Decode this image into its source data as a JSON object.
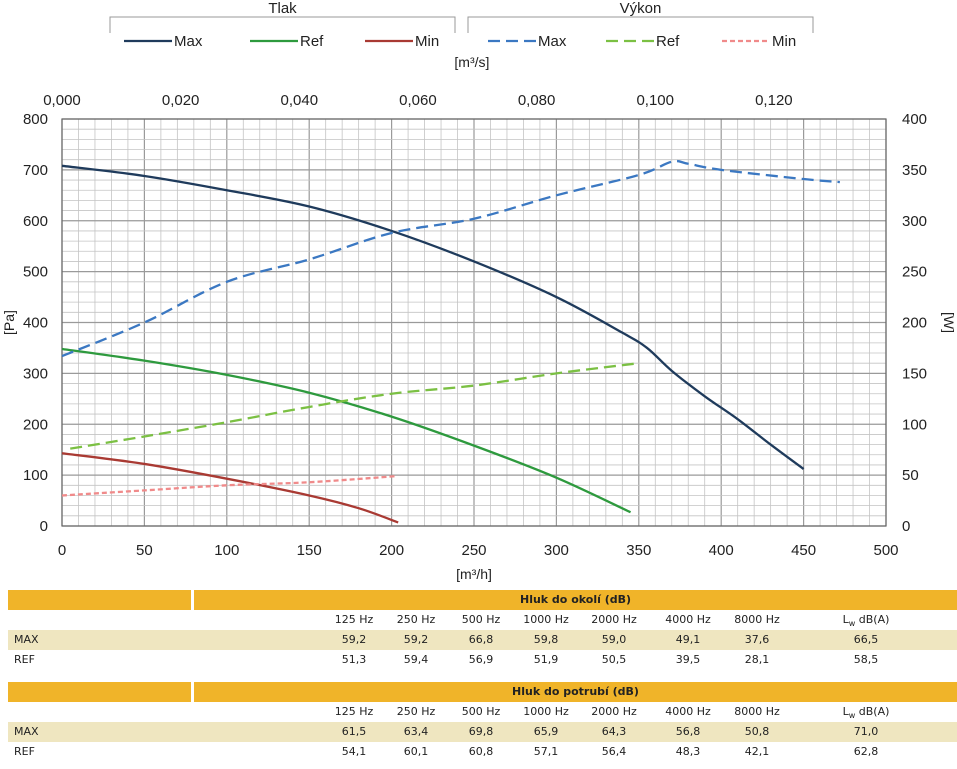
{
  "chart_data": {
    "type": "line",
    "legend": {
      "groups": [
        {
          "title": "Tlak",
          "items": [
            "Max",
            "Ref",
            "Min"
          ]
        },
        {
          "title": "Výkon",
          "items": [
            "Max",
            "Ref",
            "Min"
          ]
        }
      ],
      "placement": "top"
    },
    "top_axis": {
      "label": "[m³/s]",
      "ticks": [
        "0,000",
        "0,020",
        "0,040",
        "0,060",
        "0,080",
        "0,100",
        "0,120"
      ],
      "range": [
        0,
        0.1389
      ]
    },
    "x_axis": {
      "label": "[m³/h]",
      "ticks": [
        "0",
        "50",
        "100",
        "150",
        "200",
        "250",
        "300",
        "350",
        "400",
        "450",
        "500"
      ],
      "range": [
        0,
        500
      ]
    },
    "y_left": {
      "label": "[Pa]",
      "ticks": [
        "0",
        "100",
        "200",
        "300",
        "400",
        "500",
        "600",
        "700",
        "800"
      ],
      "range": [
        0,
        800
      ]
    },
    "y_right": {
      "label": "[W]",
      "ticks": [
        "0",
        "50",
        "100",
        "150",
        "200",
        "250",
        "300",
        "350",
        "400"
      ],
      "range": [
        0,
        400
      ]
    },
    "grid": true,
    "series": [
      {
        "name": "Max",
        "group": "Tlak",
        "axis": "left",
        "color": "#1f3b5c",
        "dash": "solid",
        "points": [
          [
            0,
            708
          ],
          [
            50,
            688
          ],
          [
            100,
            660
          ],
          [
            150,
            628
          ],
          [
            200,
            580
          ],
          [
            250,
            520
          ],
          [
            300,
            450
          ],
          [
            340,
            380
          ],
          [
            355,
            350
          ],
          [
            370,
            305
          ],
          [
            390,
            255
          ],
          [
            410,
            210
          ],
          [
            430,
            160
          ],
          [
            450,
            112
          ]
        ]
      },
      {
        "name": "Ref",
        "group": "Tlak",
        "axis": "left",
        "color": "#2e9a3e",
        "dash": "solid",
        "points": [
          [
            0,
            348
          ],
          [
            50,
            325
          ],
          [
            100,
            297
          ],
          [
            150,
            262
          ],
          [
            200,
            215
          ],
          [
            250,
            158
          ],
          [
            300,
            95
          ],
          [
            345,
            27
          ]
        ]
      },
      {
        "name": "Min",
        "group": "Tlak",
        "axis": "left",
        "color": "#a93a33",
        "dash": "solid",
        "points": [
          [
            0,
            143
          ],
          [
            50,
            122
          ],
          [
            100,
            93
          ],
          [
            150,
            60
          ],
          [
            180,
            35
          ],
          [
            204,
            7
          ]
        ]
      },
      {
        "name": "Max",
        "group": "Výkon",
        "axis": "right",
        "color": "#3b78c2",
        "dash": "dashed",
        "points": [
          [
            0,
            167
          ],
          [
            50,
            200
          ],
          [
            100,
            240
          ],
          [
            150,
            262
          ],
          [
            200,
            288
          ],
          [
            250,
            302
          ],
          [
            300,
            325
          ],
          [
            350,
            345
          ],
          [
            370,
            358
          ],
          [
            380,
            356
          ],
          [
            400,
            350
          ],
          [
            450,
            341
          ],
          [
            472,
            338
          ]
        ]
      },
      {
        "name": "Ref",
        "group": "Výkon",
        "axis": "right",
        "color": "#7bc043",
        "dash": "dashed",
        "points": [
          [
            5,
            76
          ],
          [
            50,
            88
          ],
          [
            100,
            102
          ],
          [
            150,
            117
          ],
          [
            200,
            130
          ],
          [
            250,
            138
          ],
          [
            300,
            150
          ],
          [
            350,
            160
          ]
        ]
      },
      {
        "name": "Min",
        "group": "Výkon",
        "axis": "right",
        "color": "#f08a8a",
        "dash": "dotted",
        "points": [
          [
            0,
            30
          ],
          [
            50,
            35
          ],
          [
            100,
            40
          ],
          [
            150,
            43
          ],
          [
            203,
            49
          ]
        ]
      }
    ]
  },
  "tables": [
    {
      "title": "Hluk do okolí (dB)",
      "columns": [
        "125 Hz",
        "250 Hz",
        "500 Hz",
        "1000 Hz",
        "2000 Hz",
        "4000 Hz",
        "8000 Hz"
      ],
      "lw_label": {
        "main": "L",
        "sub": "w",
        "rest": " dB(A)"
      },
      "rows": [
        {
          "label": "MAX",
          "values": [
            "59,2",
            "59,2",
            "66,8",
            "59,8",
            "59,0",
            "49,1",
            "37,6"
          ],
          "lw": "66,5"
        },
        {
          "label": "REF",
          "values": [
            "51,3",
            "59,4",
            "56,9",
            "51,9",
            "50,5",
            "39,5",
            "28,1"
          ],
          "lw": "58,5"
        }
      ]
    },
    {
      "title": "Hluk do potrubí (dB)",
      "columns": [
        "125 Hz",
        "250 Hz",
        "500 Hz",
        "1000 Hz",
        "2000 Hz",
        "4000 Hz",
        "8000 Hz"
      ],
      "lw_label": {
        "main": "L",
        "sub": "w",
        "rest": " dB(A)"
      },
      "rows": [
        {
          "label": "MAX",
          "values": [
            "61,5",
            "63,4",
            "69,8",
            "65,9",
            "64,3",
            "56,8",
            "50,8"
          ],
          "lw": "71,0"
        },
        {
          "label": "REF",
          "values": [
            "54,1",
            "60,1",
            "60,8",
            "57,1",
            "56,4",
            "48,3",
            "42,1"
          ],
          "lw": "62,8"
        }
      ]
    }
  ]
}
